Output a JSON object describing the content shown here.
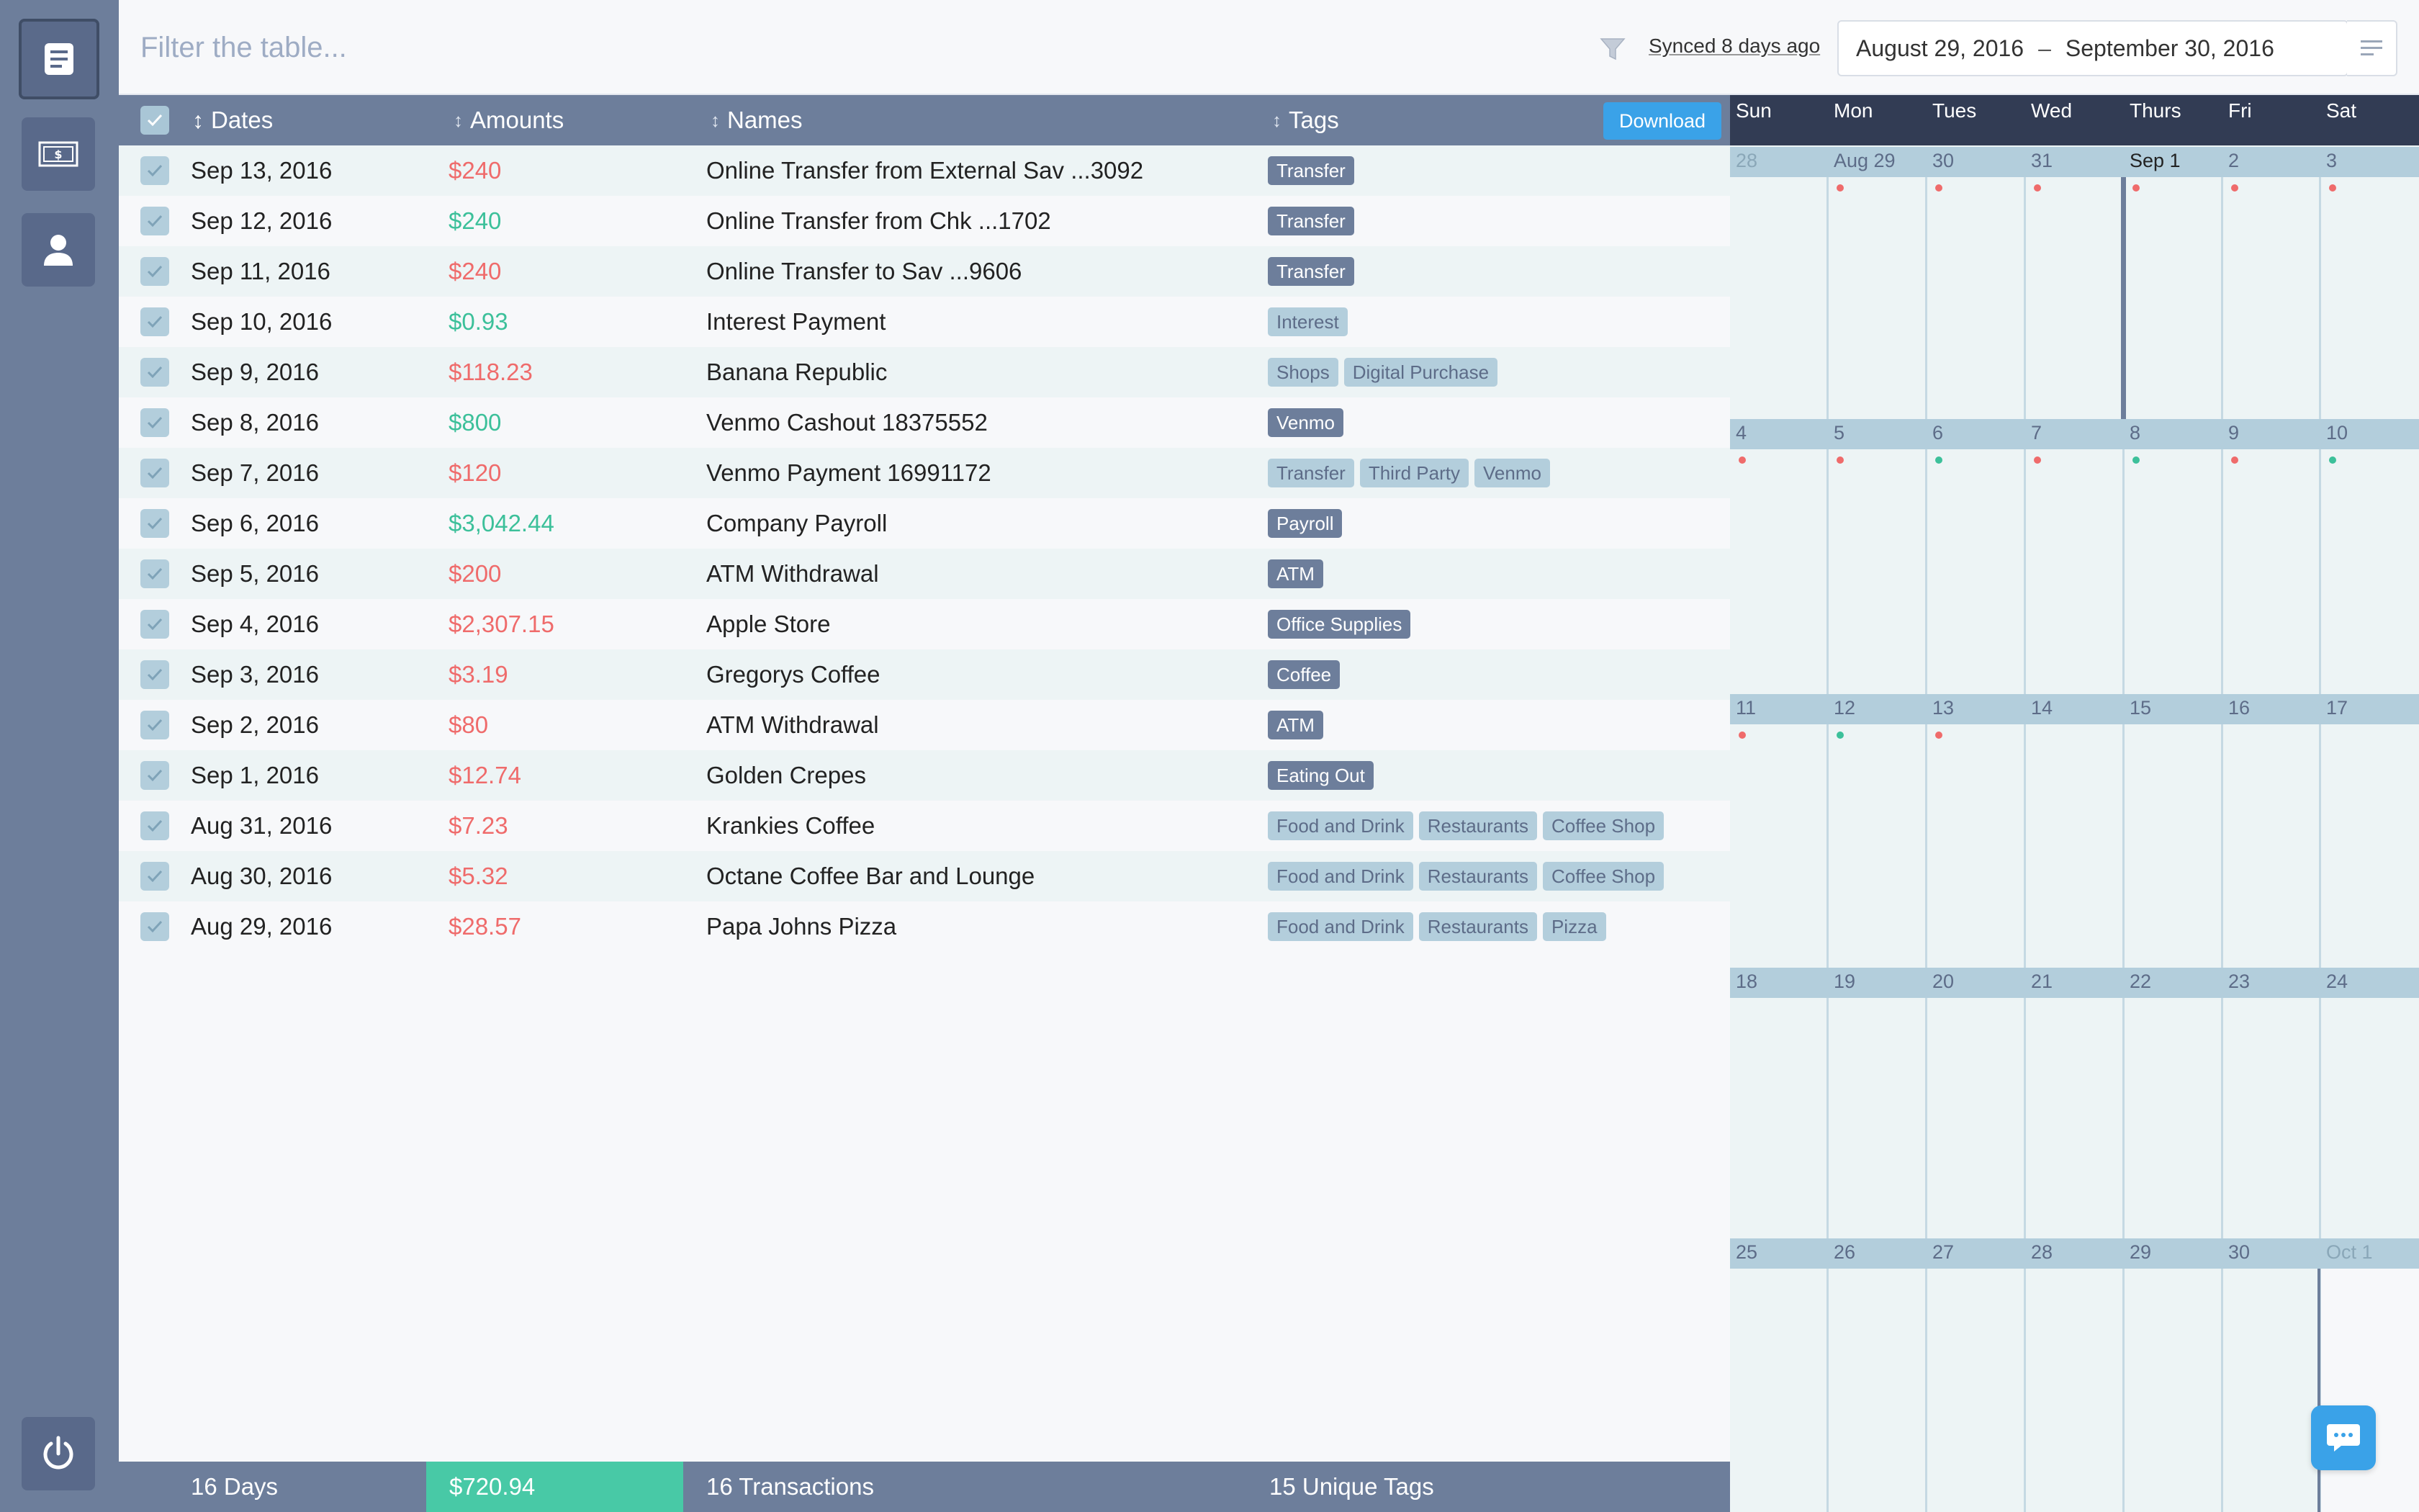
{
  "filter": {
    "placeholder": "Filter the table..."
  },
  "sync": {
    "text": "Synced 8 days ago"
  },
  "date_range": {
    "start": "August 29, 2016",
    "separator": "–",
    "end": "September 30, 2016"
  },
  "table": {
    "columns": {
      "dates": "Dates",
      "amounts": "Amounts",
      "names": "Names",
      "tags": "Tags"
    },
    "download_label": "Download",
    "rows": [
      {
        "date": "Sep 13, 2016",
        "amount": "$240",
        "amount_kind": "red",
        "name": "Online Transfer from External Sav ...3092",
        "tags": [
          {
            "label": "Transfer",
            "style": "dark"
          }
        ]
      },
      {
        "date": "Sep 12, 2016",
        "amount": "$240",
        "amount_kind": "green",
        "name": "Online Transfer from Chk ...1702",
        "tags": [
          {
            "label": "Transfer",
            "style": "dark"
          }
        ]
      },
      {
        "date": "Sep 11, 2016",
        "amount": "$240",
        "amount_kind": "red",
        "name": "Online Transfer to Sav ...9606",
        "tags": [
          {
            "label": "Transfer",
            "style": "dark"
          }
        ]
      },
      {
        "date": "Sep 10, 2016",
        "amount": "$0.93",
        "amount_kind": "green",
        "name": "Interest Payment",
        "tags": [
          {
            "label": "Interest",
            "style": "light"
          }
        ]
      },
      {
        "date": "Sep 9, 2016",
        "amount": "$118.23",
        "amount_kind": "red",
        "name": "Banana Republic",
        "tags": [
          {
            "label": "Shops",
            "style": "light"
          },
          {
            "label": "Digital Purchase",
            "style": "light"
          }
        ]
      },
      {
        "date": "Sep 8, 2016",
        "amount": "$800",
        "amount_kind": "green",
        "name": "Venmo Cashout 18375552",
        "tags": [
          {
            "label": "Venmo",
            "style": "dark"
          }
        ]
      },
      {
        "date": "Sep 7, 2016",
        "amount": "$120",
        "amount_kind": "red",
        "name": "Venmo Payment 16991172",
        "tags": [
          {
            "label": "Transfer",
            "style": "light"
          },
          {
            "label": "Third Party",
            "style": "light"
          },
          {
            "label": "Venmo",
            "style": "light"
          }
        ]
      },
      {
        "date": "Sep 6, 2016",
        "amount": "$3,042.44",
        "amount_kind": "green",
        "name": "Company Payroll",
        "tags": [
          {
            "label": "Payroll",
            "style": "dark"
          }
        ]
      },
      {
        "date": "Sep 5, 2016",
        "amount": "$200",
        "amount_kind": "red",
        "name": "ATM Withdrawal",
        "tags": [
          {
            "label": "ATM",
            "style": "dark"
          }
        ]
      },
      {
        "date": "Sep 4, 2016",
        "amount": "$2,307.15",
        "amount_kind": "red",
        "name": "Apple Store",
        "tags": [
          {
            "label": "Office Supplies",
            "style": "dark"
          }
        ]
      },
      {
        "date": "Sep 3, 2016",
        "amount": "$3.19",
        "amount_kind": "red",
        "name": "Gregorys Coffee",
        "tags": [
          {
            "label": "Coffee",
            "style": "dark"
          }
        ]
      },
      {
        "date": "Sep 2, 2016",
        "amount": "$80",
        "amount_kind": "red",
        "name": "ATM Withdrawal",
        "tags": [
          {
            "label": "ATM",
            "style": "dark"
          }
        ]
      },
      {
        "date": "Sep 1, 2016",
        "amount": "$12.74",
        "amount_kind": "red",
        "name": "Golden Crepes",
        "tags": [
          {
            "label": "Eating Out",
            "style": "dark"
          }
        ]
      },
      {
        "date": "Aug 31, 2016",
        "amount": "$7.23",
        "amount_kind": "red",
        "name": "Krankies Coffee",
        "tags": [
          {
            "label": "Food and Drink",
            "style": "light"
          },
          {
            "label": "Restaurants",
            "style": "light"
          },
          {
            "label": "Coffee Shop",
            "style": "light"
          }
        ]
      },
      {
        "date": "Aug 30, 2016",
        "amount": "$5.32",
        "amount_kind": "red",
        "name": "Octane Coffee Bar and Lounge",
        "tags": [
          {
            "label": "Food and Drink",
            "style": "light"
          },
          {
            "label": "Restaurants",
            "style": "light"
          },
          {
            "label": "Coffee Shop",
            "style": "light"
          }
        ]
      },
      {
        "date": "Aug 29, 2016",
        "amount": "$28.57",
        "amount_kind": "red",
        "name": "Papa Johns Pizza",
        "tags": [
          {
            "label": "Food and Drink",
            "style": "light"
          },
          {
            "label": "Restaurants",
            "style": "light"
          },
          {
            "label": "Pizza",
            "style": "light"
          }
        ]
      }
    ]
  },
  "footer": {
    "days": "16 Days",
    "total": "$720.94",
    "transactions": "16 Transactions",
    "tags": "15 Unique Tags"
  },
  "calendar": {
    "day_names": [
      "Sun",
      "Mon",
      "Tues",
      "Wed",
      "Thurs",
      "Fri",
      "Sat"
    ],
    "weeks": [
      [
        {
          "label": "28",
          "muted": true,
          "dot": null
        },
        {
          "label": "Aug 29",
          "muted": false,
          "dot": "red"
        },
        {
          "label": "30",
          "muted": false,
          "dot": "red"
        },
        {
          "label": "31",
          "muted": false,
          "dot": "red"
        },
        {
          "label": "Sep 1",
          "muted": false,
          "dot": "red",
          "highlight": true
        },
        {
          "label": "2",
          "muted": false,
          "dot": "red"
        },
        {
          "label": "3",
          "muted": false,
          "dot": "red"
        }
      ],
      [
        {
          "label": "4",
          "muted": false,
          "dot": "red"
        },
        {
          "label": "5",
          "muted": false,
          "dot": "red"
        },
        {
          "label": "6",
          "muted": false,
          "dot": "green"
        },
        {
          "label": "7",
          "muted": false,
          "dot": "red"
        },
        {
          "label": "8",
          "muted": false,
          "dot": "green"
        },
        {
          "label": "9",
          "muted": false,
          "dot": "red"
        },
        {
          "label": "10",
          "muted": false,
          "dot": "green"
        }
      ],
      [
        {
          "label": "11",
          "muted": false,
          "dot": "red"
        },
        {
          "label": "12",
          "muted": false,
          "dot": "green"
        },
        {
          "label": "13",
          "muted": false,
          "dot": "red"
        },
        {
          "label": "14",
          "muted": false,
          "dot": null
        },
        {
          "label": "15",
          "muted": false,
          "dot": null
        },
        {
          "label": "16",
          "muted": false,
          "dot": null
        },
        {
          "label": "17",
          "muted": false,
          "dot": null
        }
      ],
      [
        {
          "label": "18",
          "muted": false,
          "dot": null
        },
        {
          "label": "19",
          "muted": false,
          "dot": null
        },
        {
          "label": "20",
          "muted": false,
          "dot": null
        },
        {
          "label": "21",
          "muted": false,
          "dot": null
        },
        {
          "label": "22",
          "muted": false,
          "dot": null
        },
        {
          "label": "23",
          "muted": false,
          "dot": null
        },
        {
          "label": "24",
          "muted": false,
          "dot": null
        }
      ],
      [
        {
          "label": "25",
          "muted": false,
          "dot": null
        },
        {
          "label": "26",
          "muted": false,
          "dot": null
        },
        {
          "label": "27",
          "muted": false,
          "dot": null
        },
        {
          "label": "28",
          "muted": false,
          "dot": null
        },
        {
          "label": "29",
          "muted": false,
          "dot": null
        },
        {
          "label": "30",
          "muted": false,
          "dot": null
        },
        {
          "label": "Oct 1",
          "muted": true,
          "dot": null
        }
      ]
    ]
  },
  "icons": {
    "sidebar": [
      "document-list-icon",
      "money-icon",
      "user-icon"
    ],
    "logout": "power-icon",
    "filter": "funnel-icon",
    "menu": "lines-menu-icon",
    "chat": "chat-bubble-icon",
    "check": "check-icon"
  },
  "colors": {
    "sidebar": "#6d7e9b",
    "accent_blue": "#3aa2e8",
    "red": "#ef6b6b",
    "green": "#3cc09a",
    "total_bg": "#48c9a6",
    "cal_header": "#323c54"
  }
}
